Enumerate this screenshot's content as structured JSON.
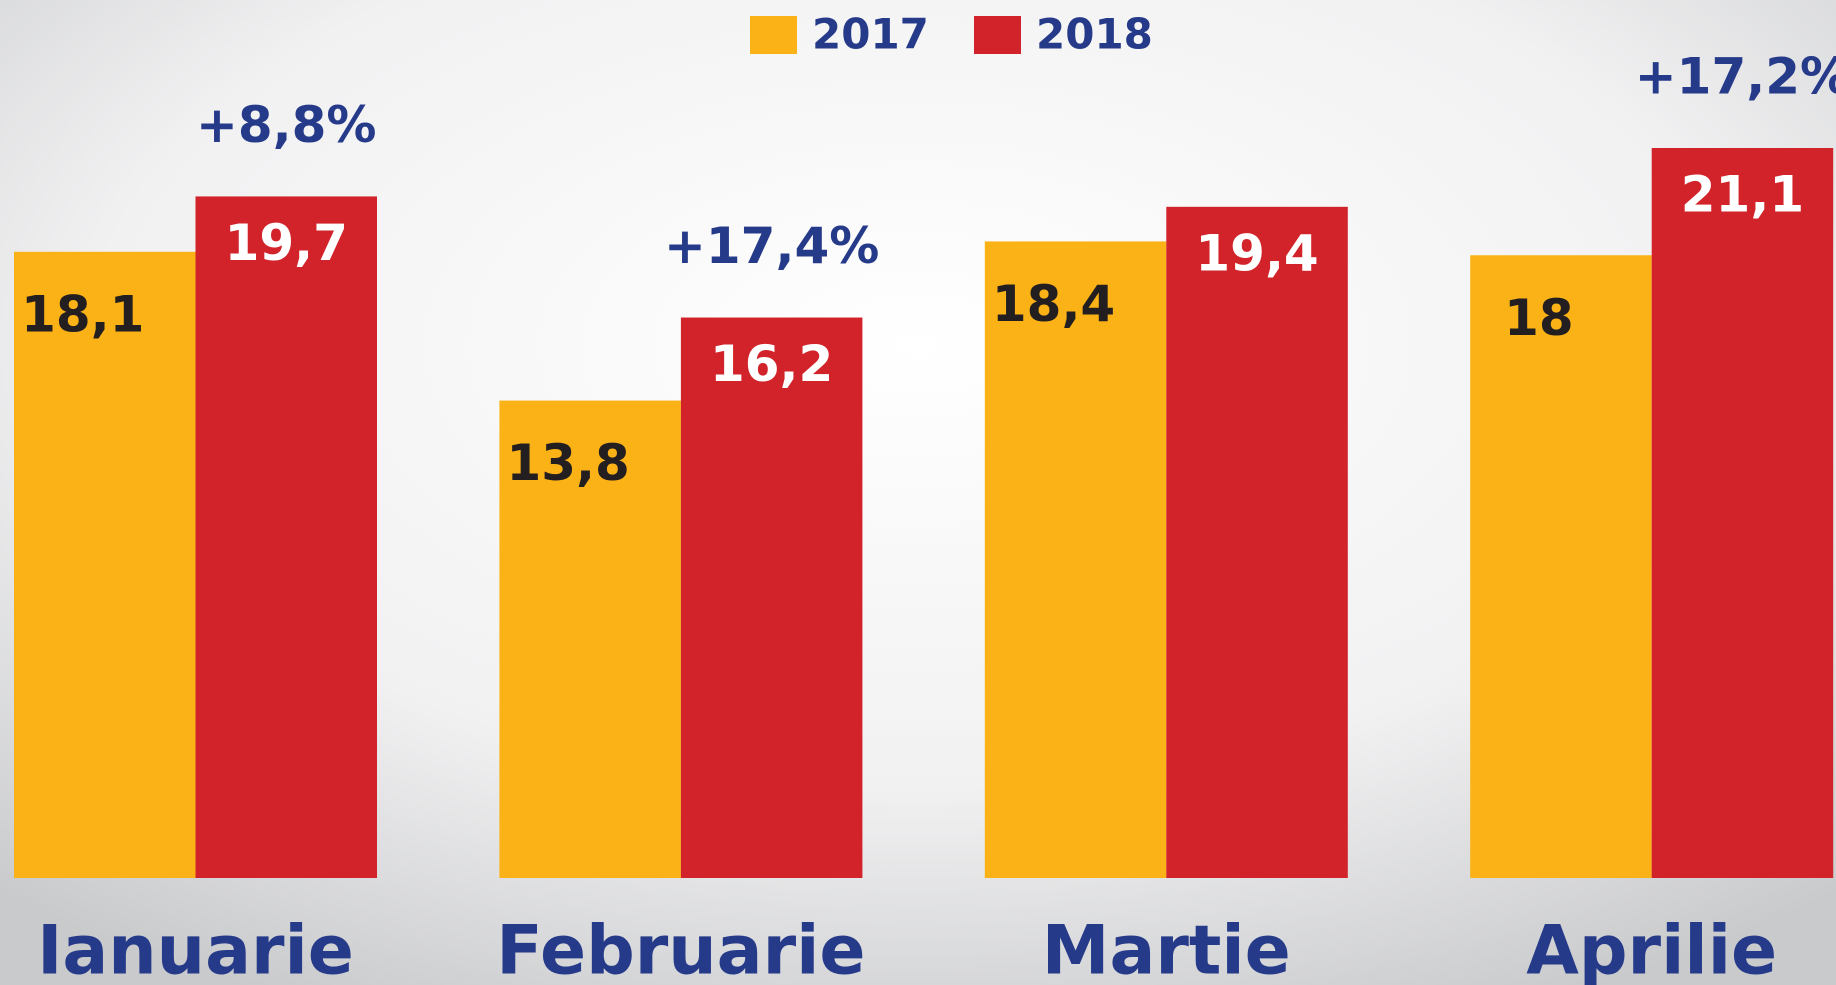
{
  "chart_data": {
    "type": "bar",
    "categories": [
      "Ianuarie",
      "Februarie",
      "Martie",
      "Aprilie"
    ],
    "series": [
      {
        "name": "2017",
        "color": "#fbb216",
        "values": [
          18.1,
          13.8,
          18.4,
          18
        ],
        "value_labels": [
          "18,1",
          "13,8",
          "18,4",
          "18"
        ]
      },
      {
        "name": "2018",
        "color": "#d2232a",
        "values": [
          19.7,
          16.2,
          19.4,
          21.1
        ],
        "value_labels": [
          "19,7",
          "16,2",
          "19,4",
          "21,1"
        ]
      }
    ],
    "annotations": [
      "+8,8%",
      "+17,4%",
      null,
      "+17,2%"
    ]
  }
}
